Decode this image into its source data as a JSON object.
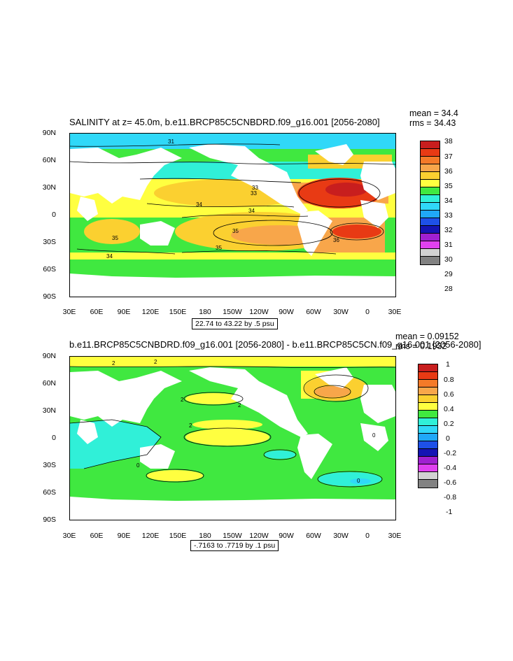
{
  "panel1": {
    "title": "SALINITY at z=  45.0m, b.e11.BRCP85C5CNBDRD.f09_g16.001 [2056-2080]",
    "mean": "mean = 34.4",
    "rms": "rms = 34.43",
    "contour_info": "22.74 to 43.22 by .5 psu",
    "lat_labels": [
      "90N",
      "60N",
      "30N",
      "0",
      "30S",
      "60S",
      "90S"
    ],
    "lon_labels": [
      "30E",
      "60E",
      "90E",
      "120E",
      "150E",
      "180",
      "150W",
      "120W",
      "90W",
      "60W",
      "30W",
      "0",
      "30E"
    ],
    "contour_labels": [
      "31",
      "33",
      "33",
      "34",
      "34",
      "34",
      "35",
      "35",
      "35",
      "36"
    ],
    "colorbar": {
      "labels": [
        "38",
        "37",
        "36",
        "35",
        "34",
        "33",
        "32",
        "31",
        "30",
        "29",
        "28"
      ],
      "colors": [
        "#c81e1e",
        "#e83a14",
        "#f47a28",
        "#f8a64a",
        "#fbd030",
        "#ffff40",
        "#40e840",
        "#30f0d8",
        "#30d8f8",
        "#20a8f8",
        "#1e50e8",
        "#1414b4",
        "#a020d0",
        "#e040f0",
        "#d2d2d2",
        "#828282"
      ]
    }
  },
  "panel2": {
    "title": "b.e11.BRCP85C5CNBDRD.f09_g16.001 [2056-2080] - b.e11.BRCP85C5CN.f09_g16.001 [2056-2080]",
    "mean": "mean = 0.09152",
    "rms": "rms = 0.1932",
    "contour_info": "-.7163 to .7719 by .1 psu",
    "lat_labels": [
      "90N",
      "60N",
      "30N",
      "0",
      "30S",
      "60S",
      "90S"
    ],
    "lon_labels": [
      "30E",
      "60E",
      "90E",
      "120E",
      "150E",
      "180",
      "150W",
      "120W",
      "90W",
      "60W",
      "30W",
      "0",
      "30E"
    ],
    "contour_labels": [
      "2",
      "2",
      "2",
      "2",
      "2",
      "0",
      "0",
      "0"
    ],
    "colorbar": {
      "labels": [
        "1",
        "0.8",
        "0.6",
        "0.4",
        "0.2",
        "0",
        "-0.2",
        "-0.4",
        "-0.6",
        "-0.8",
        "-1"
      ],
      "colors": [
        "#c81e1e",
        "#e83a14",
        "#f47a28",
        "#f8a64a",
        "#fbd030",
        "#ffff40",
        "#40e840",
        "#30f0d8",
        "#30d8f8",
        "#20a8f8",
        "#1e50e8",
        "#1414b4",
        "#a020d0",
        "#e040f0",
        "#d2d2d2",
        "#828282"
      ]
    }
  }
}
